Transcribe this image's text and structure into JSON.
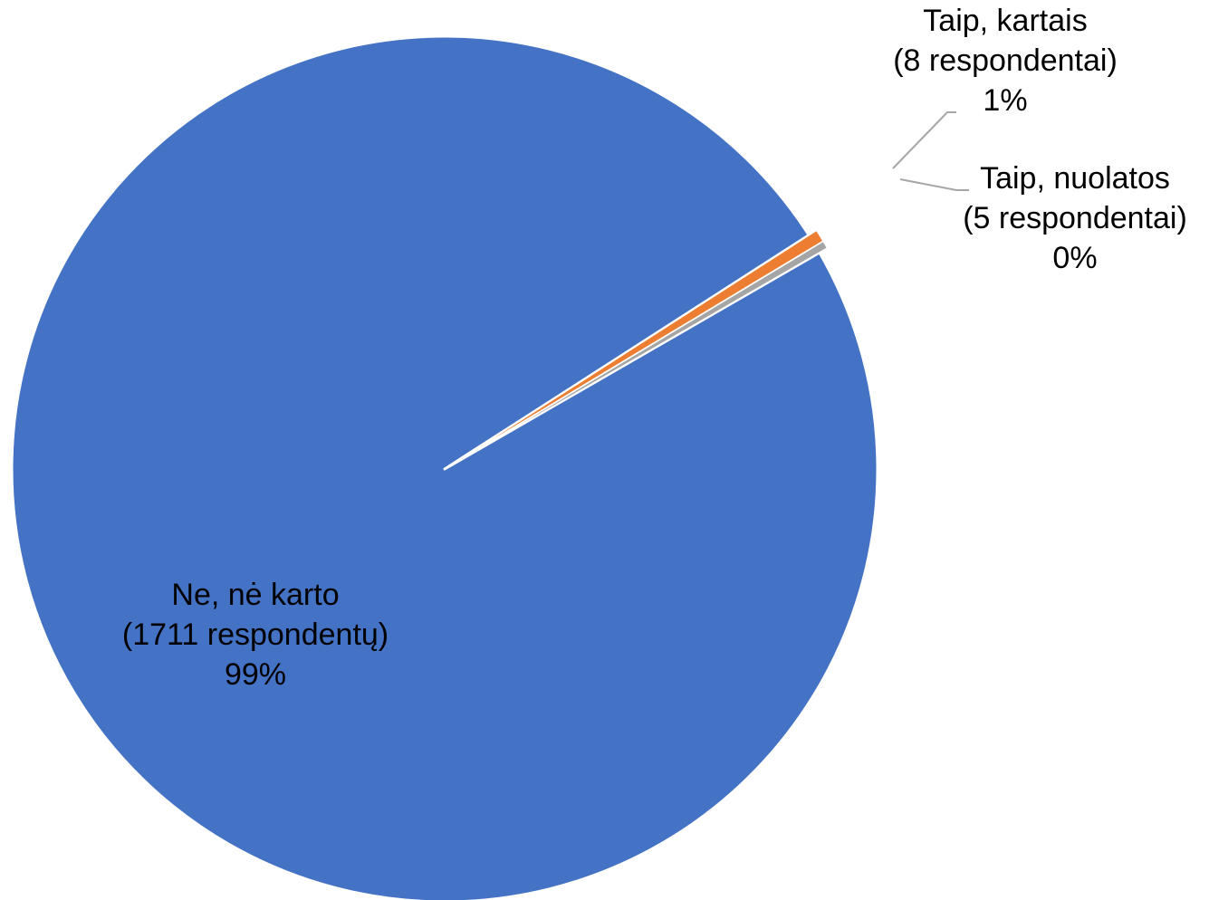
{
  "chart_data": {
    "type": "pie",
    "title": "",
    "slices": [
      {
        "label_line1": "Ne, nė karto",
        "label_line2": "(1711 respondentų)",
        "label_line3": "99%",
        "value": 1711,
        "percent": 99,
        "color": "#4472c4"
      },
      {
        "label_line1": "Taip, kartais",
        "label_line2": "(8 respondentai)",
        "label_line3": "1%",
        "value": 8,
        "percent": 1,
        "color": "#ed7d31"
      },
      {
        "label_line1": "Taip, nuolatos",
        "label_line2": "(5 respondentai)",
        "label_line3": "0%",
        "value": 5,
        "percent": 0,
        "color": "#a5a5a5"
      }
    ],
    "legend": "none"
  }
}
